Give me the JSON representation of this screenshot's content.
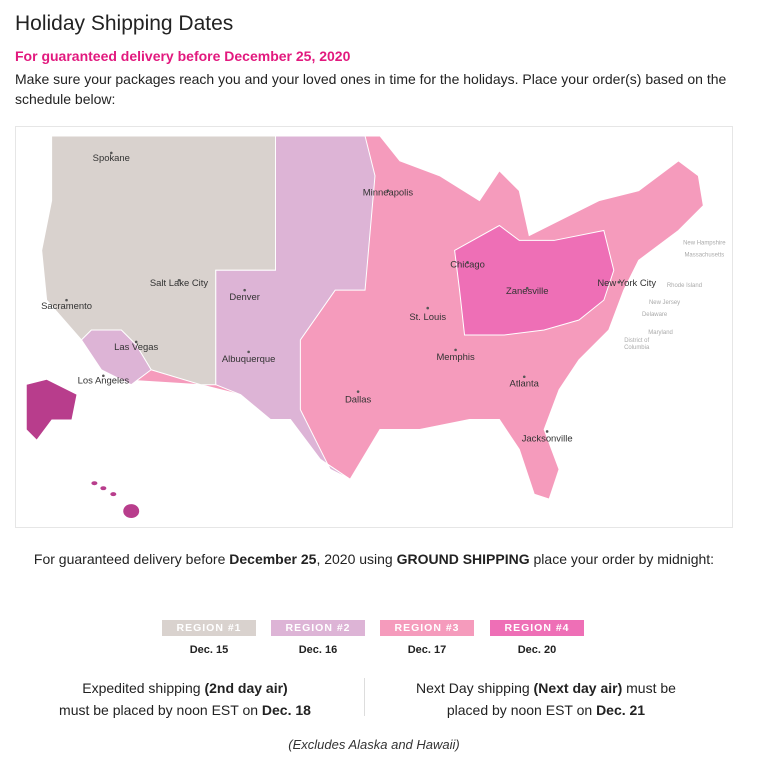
{
  "header": {
    "title": "Holiday Shipping Dates",
    "subtitle": "For guaranteed delivery before December 25, 2020",
    "intro": "Make sure your packages reach you and your loved ones in time for the holidays. Place your order(s) based on the schedule below:"
  },
  "colors": {
    "region1": "#d9d2ce",
    "region2": "#ddb4d6",
    "region3": "#f59bbc",
    "region4": "#ee6fb6",
    "alaska": "#b83d8c",
    "accent": "#e2197e"
  },
  "map": {
    "cities": [
      "Spokane",
      "Minneapolis",
      "Salt Lake City",
      "Denver",
      "Sacramento",
      "Chicago",
      "Zanesville",
      "New York City",
      "St. Louis",
      "Las Vegas",
      "Albuquerque",
      "Memphis",
      "Los Angeles",
      "Atlanta",
      "Dallas",
      "Jacksonville"
    ],
    "small_labels": [
      "New Hampshire",
      "Massachusetts",
      "Rhode Island",
      "New Jersey",
      "Delaware",
      "Maryland",
      "District of",
      "Columbia"
    ]
  },
  "ground": {
    "p1": "For guaranteed delivery before ",
    "b1": "December 25",
    "p2": ", 2020 using ",
    "b2": "GROUND SHIPPING",
    "p3": " place your order by midnight:"
  },
  "regions": [
    {
      "label": "REGION #1",
      "date": "Dec. 15"
    },
    {
      "label": "REGION #2",
      "date": "Dec. 16"
    },
    {
      "label": "REGION #3",
      "date": "Dec. 17"
    },
    {
      "label": "REGION #4",
      "date": "Dec. 20"
    }
  ],
  "expedited": {
    "p1": "Expedited shipping ",
    "b1": "(2nd day air)",
    "p2": "must be placed by noon EST on ",
    "b2": "Dec. 18"
  },
  "nextday": {
    "p1": "Next Day shipping ",
    "b1": "(Next day air)",
    "p2": " must be placed by noon EST on ",
    "b2": "Dec. 21"
  },
  "note": "(Excludes Alaska and Hawaii)"
}
